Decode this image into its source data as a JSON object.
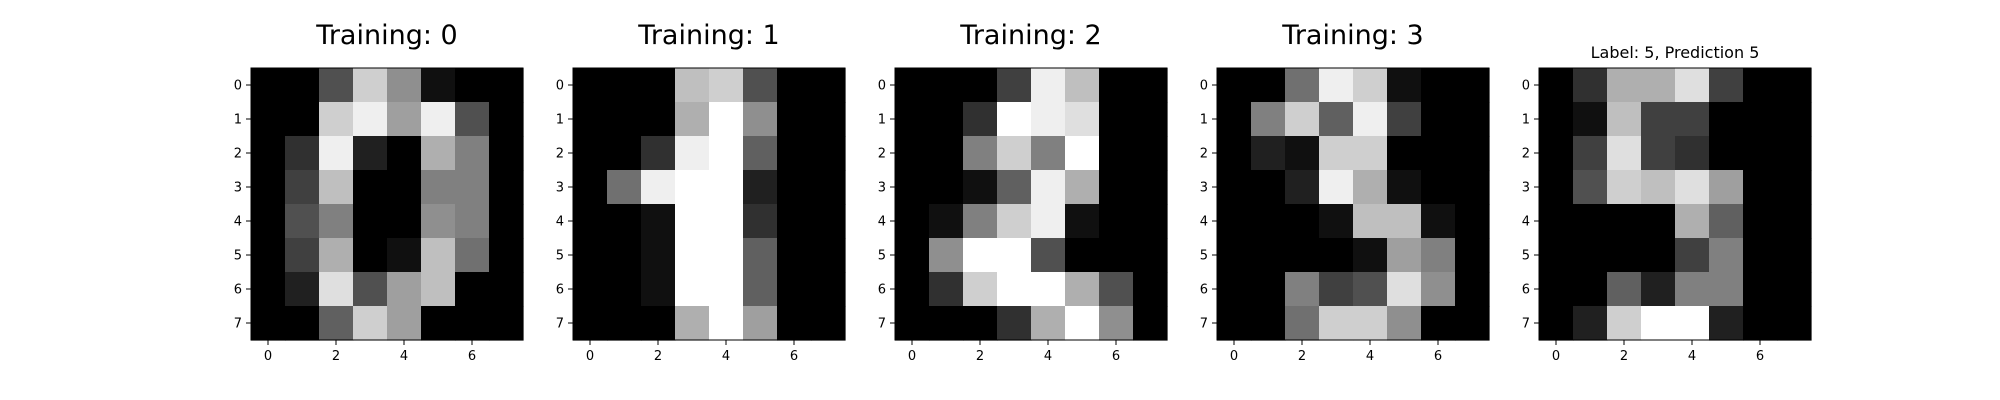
{
  "figure": {
    "background": "#ffffff",
    "cmap": "gray",
    "value_range": [
      0,
      16
    ]
  },
  "chart_data": [
    {
      "type": "heatmap",
      "title": "Training: 0",
      "x_ticks": [
        "0",
        "2",
        "4",
        "6"
      ],
      "y_ticks": [
        "0",
        "1",
        "2",
        "3",
        "4",
        "5",
        "6",
        "7"
      ],
      "values": [
        [
          0,
          0,
          5,
          13,
          9,
          1,
          0,
          0
        ],
        [
          0,
          0,
          13,
          15,
          10,
          15,
          5,
          0
        ],
        [
          0,
          3,
          15,
          2,
          0,
          11,
          8,
          0
        ],
        [
          0,
          4,
          12,
          0,
          0,
          8,
          8,
          0
        ],
        [
          0,
          5,
          8,
          0,
          0,
          9,
          8,
          0
        ],
        [
          0,
          4,
          11,
          0,
          1,
          12,
          7,
          0
        ],
        [
          0,
          2,
          14,
          5,
          10,
          12,
          0,
          0
        ],
        [
          0,
          0,
          6,
          13,
          10,
          0,
          0,
          0
        ]
      ]
    },
    {
      "type": "heatmap",
      "title": "Training: 1",
      "x_ticks": [
        "0",
        "2",
        "4",
        "6"
      ],
      "y_ticks": [
        "0",
        "1",
        "2",
        "3",
        "4",
        "5",
        "6",
        "7"
      ],
      "values": [
        [
          0,
          0,
          0,
          12,
          13,
          5,
          0,
          0
        ],
        [
          0,
          0,
          0,
          11,
          16,
          9,
          0,
          0
        ],
        [
          0,
          0,
          3,
          15,
          16,
          6,
          0,
          0
        ],
        [
          0,
          7,
          15,
          16,
          16,
          2,
          0,
          0
        ],
        [
          0,
          0,
          1,
          16,
          16,
          3,
          0,
          0
        ],
        [
          0,
          0,
          1,
          16,
          16,
          6,
          0,
          0
        ],
        [
          0,
          0,
          1,
          16,
          16,
          6,
          0,
          0
        ],
        [
          0,
          0,
          0,
          11,
          16,
          10,
          0,
          0
        ]
      ]
    },
    {
      "type": "heatmap",
      "title": "Training: 2",
      "x_ticks": [
        "0",
        "2",
        "4",
        "6"
      ],
      "y_ticks": [
        "0",
        "1",
        "2",
        "3",
        "4",
        "5",
        "6",
        "7"
      ],
      "values": [
        [
          0,
          0,
          0,
          4,
          15,
          12,
          0,
          0
        ],
        [
          0,
          0,
          3,
          16,
          15,
          14,
          0,
          0
        ],
        [
          0,
          0,
          8,
          13,
          8,
          16,
          0,
          0
        ],
        [
          0,
          0,
          1,
          6,
          15,
          11,
          0,
          0
        ],
        [
          0,
          1,
          8,
          13,
          15,
          1,
          0,
          0
        ],
        [
          0,
          9,
          16,
          16,
          5,
          0,
          0,
          0
        ],
        [
          0,
          3,
          13,
          16,
          16,
          11,
          5,
          0
        ],
        [
          0,
          0,
          0,
          3,
          11,
          16,
          9,
          0
        ]
      ]
    },
    {
      "type": "heatmap",
      "title": "Training: 3",
      "x_ticks": [
        "0",
        "2",
        "4",
        "6"
      ],
      "y_ticks": [
        "0",
        "1",
        "2",
        "3",
        "4",
        "5",
        "6",
        "7"
      ],
      "values": [
        [
          0,
          0,
          7,
          15,
          13,
          1,
          0,
          0
        ],
        [
          0,
          8,
          13,
          6,
          15,
          4,
          0,
          0
        ],
        [
          0,
          2,
          1,
          13,
          13,
          0,
          0,
          0
        ],
        [
          0,
          0,
          2,
          15,
          11,
          1,
          0,
          0
        ],
        [
          0,
          0,
          0,
          1,
          12,
          12,
          1,
          0
        ],
        [
          0,
          0,
          0,
          0,
          1,
          10,
          8,
          0
        ],
        [
          0,
          0,
          8,
          4,
          5,
          14,
          9,
          0
        ],
        [
          0,
          0,
          7,
          13,
          13,
          9,
          0,
          0
        ]
      ]
    },
    {
      "type": "heatmap",
      "title": "Label: 5, Prediction 5",
      "x_ticks": [
        "0",
        "2",
        "4",
        "6"
      ],
      "y_ticks": [
        "0",
        "1",
        "2",
        "3",
        "4",
        "5",
        "6",
        "7"
      ],
      "values": [
        [
          0,
          3,
          11,
          11,
          14,
          4,
          0,
          0
        ],
        [
          0,
          1,
          12,
          4,
          4,
          0,
          0,
          0
        ],
        [
          0,
          4,
          14,
          4,
          3,
          0,
          0,
          0
        ],
        [
          0,
          5,
          13,
          12,
          14,
          10,
          0,
          0
        ],
        [
          0,
          0,
          0,
          0,
          11,
          6,
          0,
          0
        ],
        [
          0,
          0,
          0,
          0,
          4,
          8,
          0,
          0
        ],
        [
          0,
          0,
          6,
          2,
          8,
          8,
          0,
          0
        ],
        [
          0,
          2,
          13,
          16,
          16,
          2,
          0,
          0
        ]
      ]
    }
  ]
}
